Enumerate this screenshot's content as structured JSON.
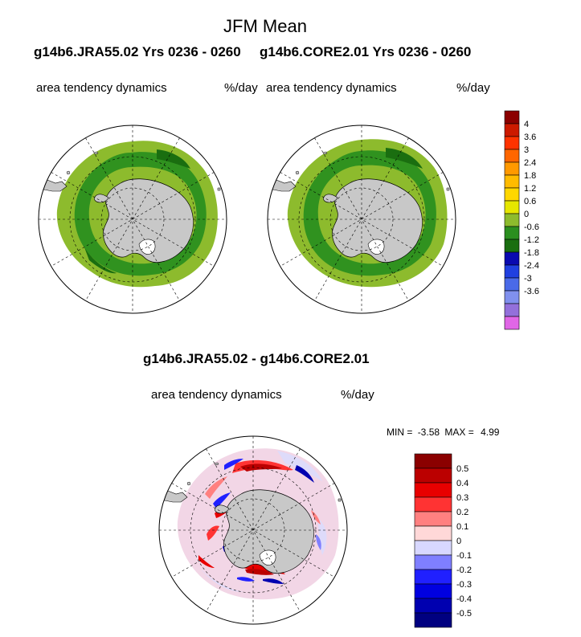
{
  "figure": {
    "title": "JFM Mean",
    "left_case": "g14b6.JRA55.02  Yrs 0236 - 0260",
    "right_case": "g14b6.CORE2.01  Yrs 0236 - 0260",
    "diff_title": "g14b6.JRA55.02 - g14b6.CORE2.01"
  },
  "panels": {
    "left": {
      "variable": "area tendency dynamics",
      "units": "%/day"
    },
    "right": {
      "variable": "area tendency dynamics",
      "units": "%/day"
    },
    "diff": {
      "variable": "area tendency dynamics",
      "units": "%/day",
      "min_label": "MIN =",
      "min_value": "-3.58",
      "max_label": "MAX =",
      "max_value": "4.99"
    }
  },
  "colorbars": {
    "main": {
      "colors": [
        "#8b0000",
        "#cc1a00",
        "#ff3300",
        "#ff6600",
        "#ff9900",
        "#ffbb00",
        "#ffd700",
        "#e6e600",
        "#8dbb2d",
        "#2b8f1f",
        "#1a6e10",
        "#0a0ab0",
        "#2040e0",
        "#4a6ae8",
        "#8090ee",
        "#9370db",
        "#e066e6"
      ],
      "labels": [
        "4",
        "3.6",
        "3",
        "2.4",
        "1.8",
        "1.2",
        "0.6",
        "0",
        "-0.6",
        "-1.2",
        "-1.8",
        "-2.4",
        "-3",
        "-3.6"
      ]
    },
    "diff": {
      "colors": [
        "#8b0000",
        "#bb0000",
        "#e80000",
        "#ff3333",
        "#ff8080",
        "#ffd8d8",
        "#d8d8ff",
        "#7f7fff",
        "#2020ff",
        "#0000e0",
        "#0000b0",
        "#000080"
      ],
      "labels": [
        "0.5",
        "0.4",
        "0.3",
        "0.2",
        "0.1",
        "0",
        "-0.1",
        "-0.2",
        "-0.3",
        "-0.4",
        "-0.5"
      ]
    }
  }
}
